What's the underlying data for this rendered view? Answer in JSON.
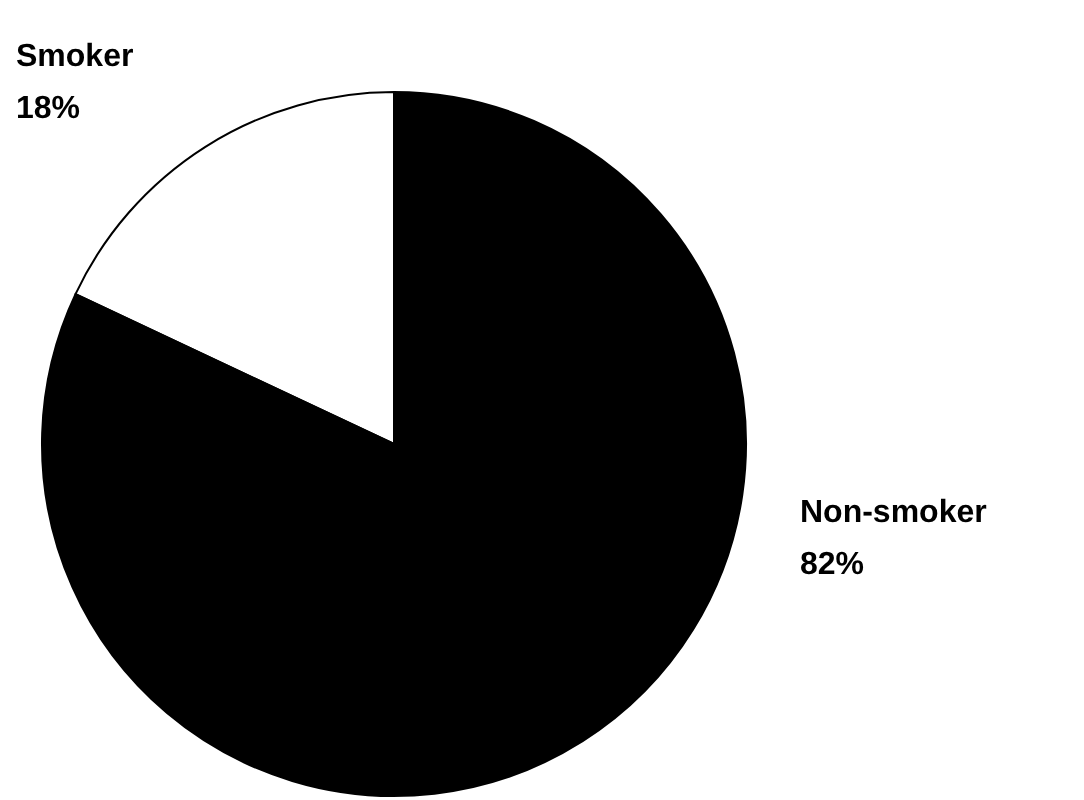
{
  "chart_data": {
    "type": "pie",
    "categories": [
      "Smoker",
      "Non-smoker"
    ],
    "values": [
      18,
      82
    ],
    "colors": [
      "#ffffff",
      "#000000"
    ],
    "value_labels": [
      "18%",
      "82%"
    ]
  }
}
